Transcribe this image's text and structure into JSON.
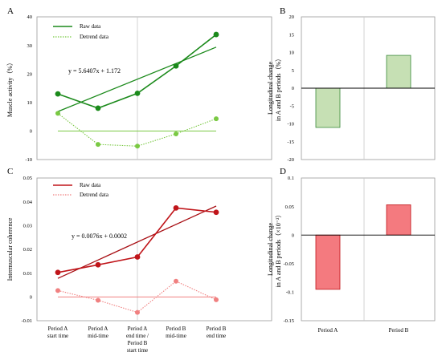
{
  "panels": {
    "A": "A",
    "B": "B",
    "C": "C",
    "D": "D"
  },
  "x_categories": [
    [
      "Period A",
      "start time"
    ],
    [
      "Period A",
      "mid-time"
    ],
    [
      "Period A",
      "end time /",
      "Period B",
      "start time"
    ],
    [
      "Period B",
      "mid-time"
    ],
    [
      "Period B",
      "end time"
    ]
  ],
  "bar_categories": [
    "Period A",
    "Period B"
  ],
  "chart_data": [
    {
      "panel": "A",
      "type": "line",
      "ylabel": "Muscle activity（%）",
      "ylim": [
        -10,
        40
      ],
      "yticks": [
        -10,
        0,
        10,
        20,
        30,
        40
      ],
      "series": [
        {
          "name": "Raw data",
          "values": [
            13,
            8,
            13.2,
            22.8,
            33.8
          ],
          "color": "#1b8a1b",
          "style": "solid"
        },
        {
          "name": "Detrend data",
          "values": [
            6.2,
            -4.7,
            -5.3,
            -1,
            4.3
          ],
          "color": "#7ac943",
          "style": "dotted"
        }
      ],
      "trendline": {
        "label": "y = 5.6407x + 1.172",
        "slope": 5.6407,
        "intercept": 1.172,
        "color": "#1b8a1b"
      },
      "baseline": {
        "value": 0,
        "color": "#7ac943"
      },
      "divider_after_index": 2,
      "colors": {
        "raw_marker": "#1b8a1b",
        "detrend_marker": "#7ac943"
      }
    },
    {
      "panel": "B",
      "type": "bar",
      "ylabel": [
        "Longitudinal change",
        "in A and B periods（%）"
      ],
      "ylim": [
        -20,
        20
      ],
      "yticks": [
        -20,
        -15,
        -10,
        -5,
        0,
        5,
        10,
        15,
        20
      ],
      "values": [
        -11,
        9.2
      ],
      "colors": {
        "fill": "#c6e0b4",
        "stroke": "#3a8a3a"
      }
    },
    {
      "panel": "C",
      "type": "line",
      "ylabel": "Intermuscular coherence",
      "ylim": [
        -0.01,
        0.05
      ],
      "yticks": [
        "-0.01",
        "0",
        "0.01",
        "0.02",
        "0.03",
        "0.04",
        "0.05"
      ],
      "series": [
        {
          "name": "Raw data",
          "values": [
            0.0103,
            0.0135,
            0.0168,
            0.0374,
            0.0356
          ],
          "color": "#c0151a",
          "style": "solid"
        },
        {
          "name": "Detrend data",
          "values": [
            0.0027,
            -0.0014,
            -0.0065,
            0.0066,
            -0.0012
          ],
          "color": "#f08080",
          "style": "dotted"
        }
      ],
      "trendline": {
        "label": "y = 0.0076x + 0.0002",
        "slope": 0.0076,
        "intercept": 0.0002,
        "color": "#a80f14"
      },
      "baseline": {
        "value": 0,
        "color": "#f08080"
      },
      "divider_after_index": 2,
      "colors": {
        "raw_marker": "#c0151a",
        "detrend_marker": "#f08080"
      }
    },
    {
      "panel": "D",
      "type": "bar",
      "ylabel": [
        "Longitudinal change",
        "in A and B periods（×10⁻²）"
      ],
      "ylim": [
        -0.15,
        0.1
      ],
      "yticks": [
        "-0.15",
        "-0.1",
        "-0.05",
        "0",
        "0.05",
        "0.1"
      ],
      "values": [
        -0.095,
        0.053
      ],
      "colors": {
        "fill": "#f47a7f",
        "stroke": "#c0151a"
      }
    }
  ]
}
